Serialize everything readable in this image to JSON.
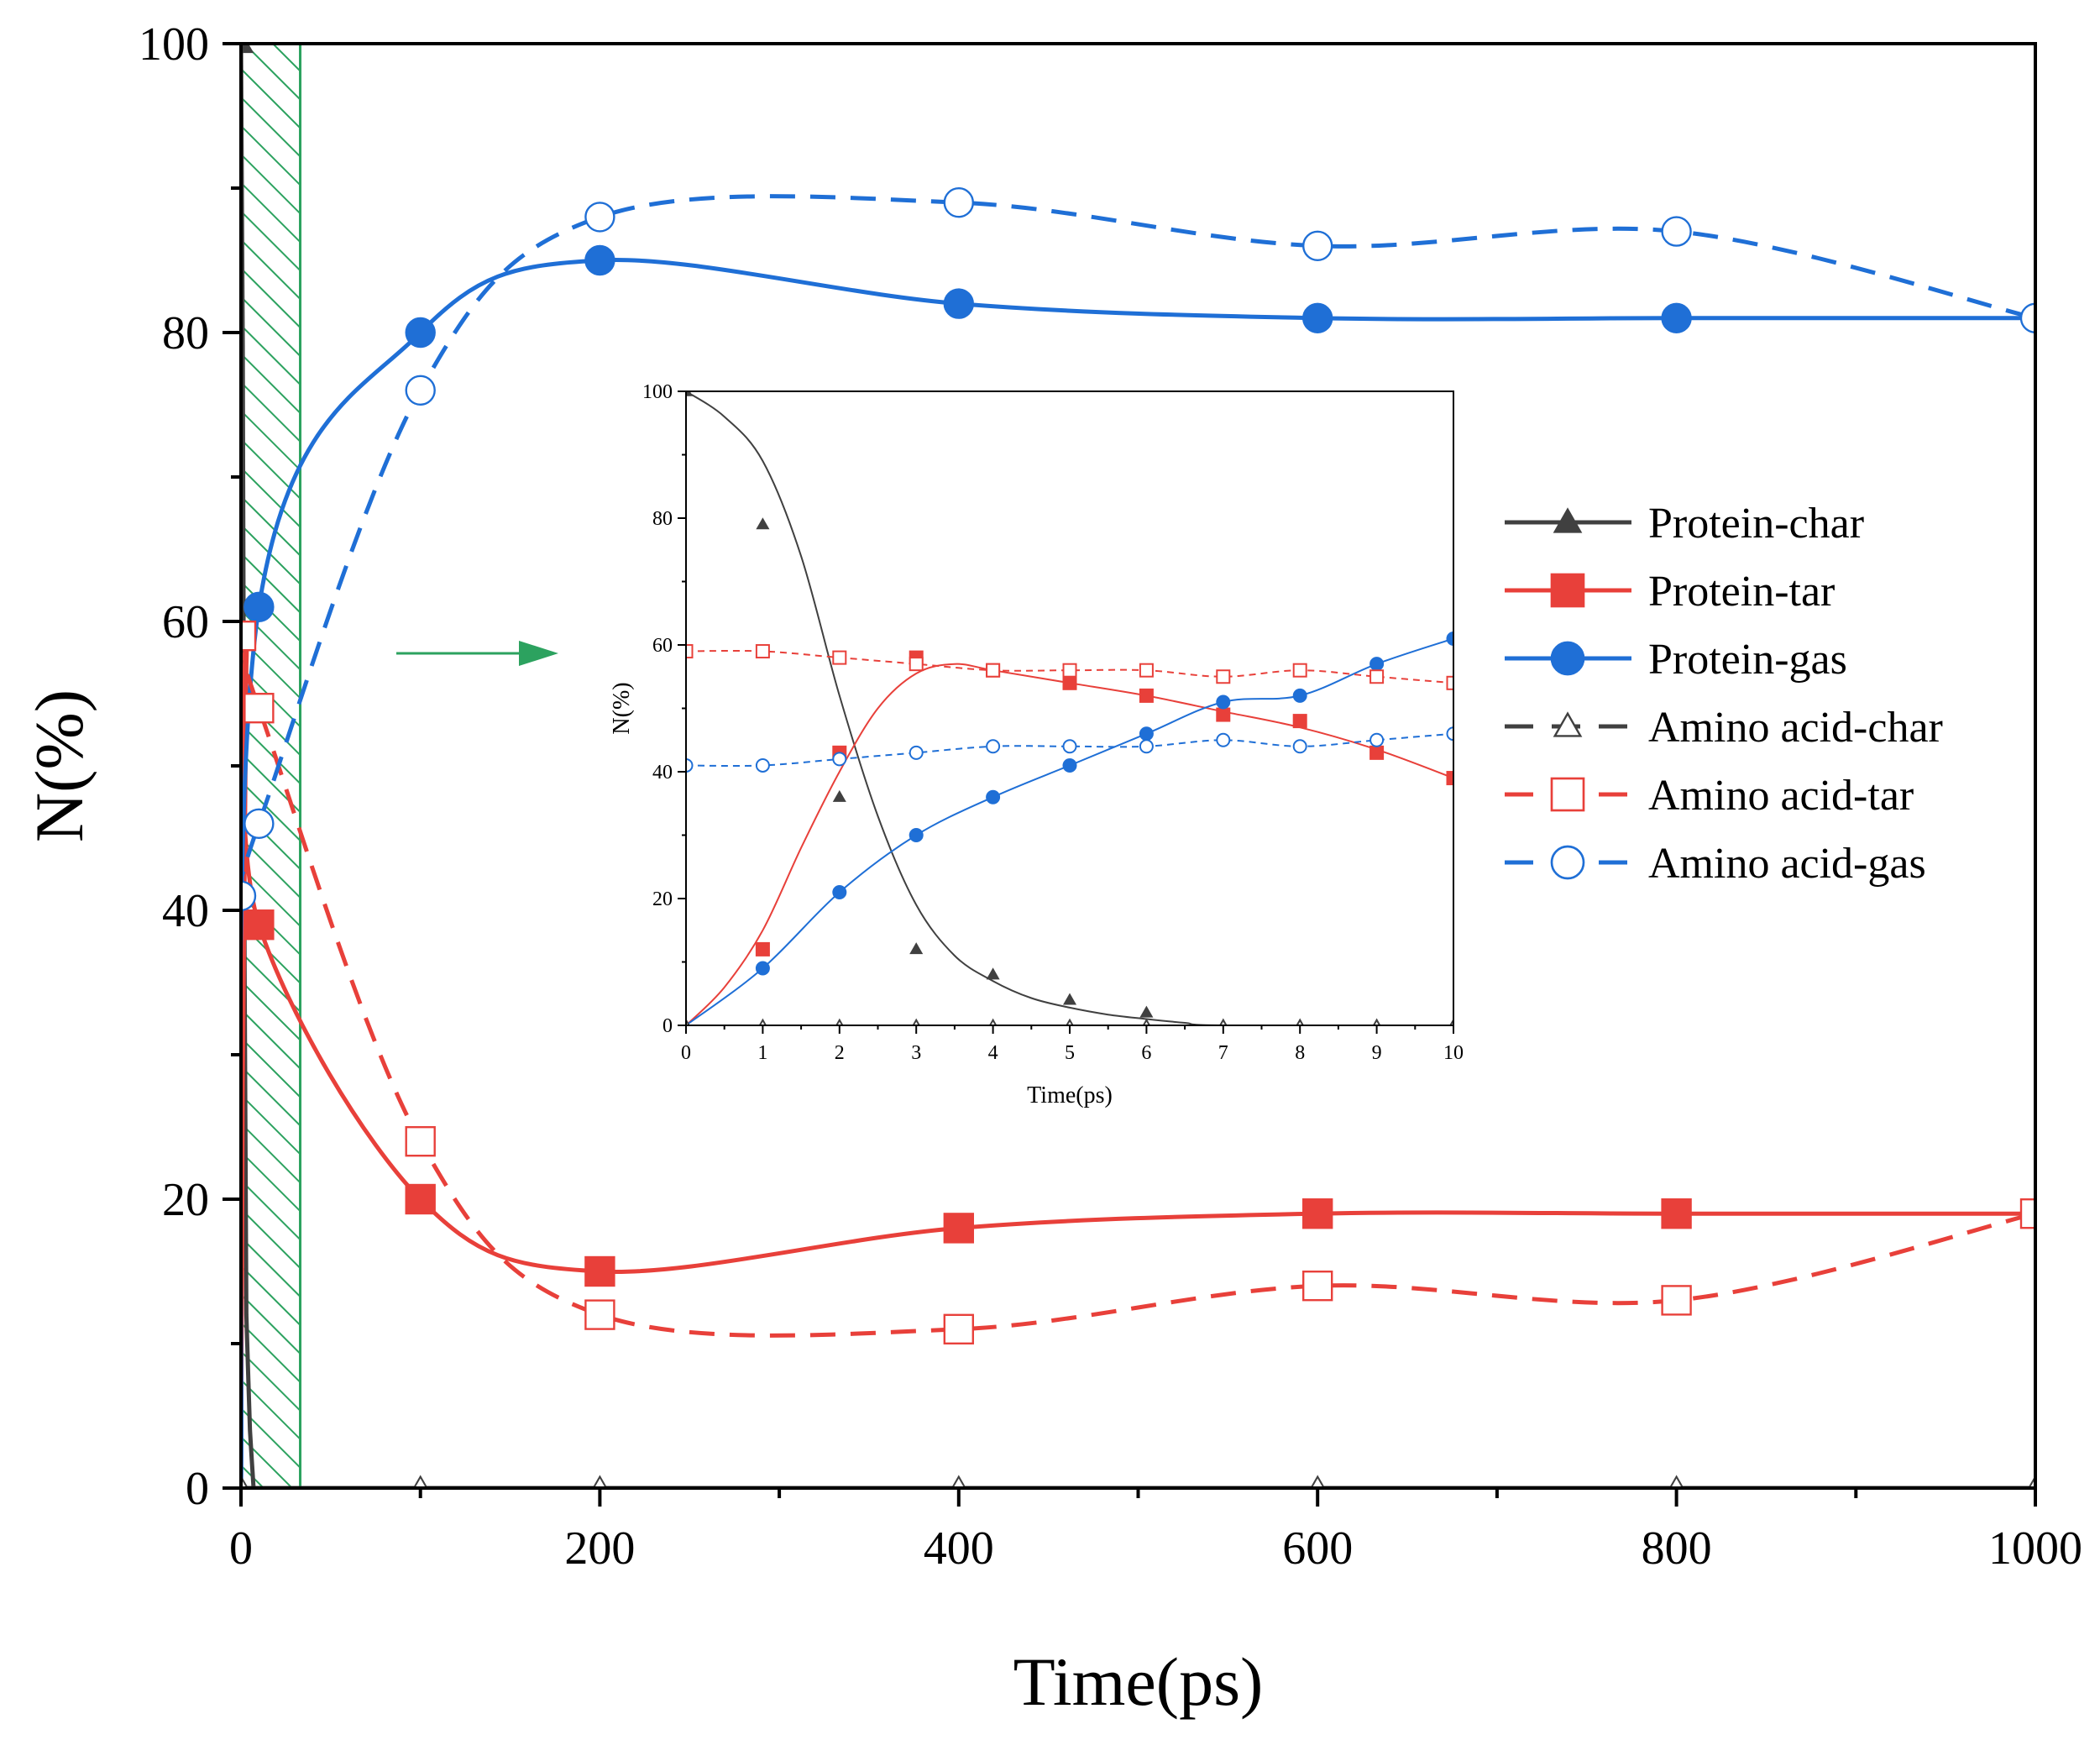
{
  "chart_data": [
    {
      "id": "main",
      "type": "line",
      "xlabel": "Time(ps)",
      "ylabel": "N(%)",
      "xlim": [
        0,
        1000
      ],
      "ylim": [
        0,
        100
      ],
      "xticks": [
        0,
        200,
        400,
        600,
        800,
        1000
      ],
      "yticks": [
        0,
        20,
        40,
        60,
        80,
        100
      ],
      "highlight_region": {
        "x_from": 0,
        "x_to": 33,
        "color": "#2ca25f"
      },
      "series": [
        {
          "name": "Protein-char",
          "color": "#404040",
          "dash": "solid",
          "marker": "triangle-filled",
          "smooth": false,
          "x": [
            0,
            1,
            2,
            3,
            4,
            5,
            6,
            7,
            10,
            20,
            30,
            50,
            100,
            200,
            400,
            600,
            800,
            1000
          ],
          "y": [
            100,
            79,
            36,
            12,
            8,
            4,
            2,
            0,
            0,
            0,
            0,
            0,
            0,
            0,
            0,
            0,
            0,
            0
          ],
          "marker_x": [
            0
          ],
          "marker_y": [
            100
          ]
        },
        {
          "name": "Protein-tar",
          "color": "#e8403a",
          "dash": "solid",
          "marker": "square-filled",
          "smooth": true,
          "x": [
            0,
            3,
            10,
            100,
            200,
            400,
            600,
            800,
            1000
          ],
          "y": [
            0,
            57,
            39,
            20,
            15,
            18,
            19,
            19,
            19
          ],
          "marker_x": [
            10,
            100,
            200,
            400,
            600,
            800
          ],
          "marker_y": [
            39,
            20,
            15,
            18,
            19,
            19
          ]
        },
        {
          "name": "Protein-gas",
          "color": "#1f6fd6",
          "dash": "solid",
          "marker": "circle-filled",
          "smooth": true,
          "x": [
            0,
            10,
            100,
            200,
            400,
            600,
            800,
            1000
          ],
          "y": [
            0,
            61,
            80,
            85,
            82,
            81,
            81,
            81
          ],
          "marker_x": [
            10,
            100,
            200,
            400,
            600,
            800
          ],
          "marker_y": [
            61,
            80,
            85,
            82,
            81,
            81
          ]
        },
        {
          "name": "Amino acid-char",
          "color": "#404040",
          "dash": "dashed",
          "marker": "triangle-open",
          "smooth": false,
          "x": [
            0,
            100,
            200,
            400,
            600,
            800,
            1000
          ],
          "y": [
            0,
            0,
            0,
            0,
            0,
            0,
            0
          ],
          "marker_x": [
            0,
            100,
            200,
            400,
            600,
            800,
            1000
          ],
          "marker_y": [
            0,
            0,
            0,
            0,
            0,
            0,
            0
          ]
        },
        {
          "name": "Amino acid-tar",
          "color": "#e8403a",
          "dash": "dashed",
          "marker": "square-open",
          "smooth": true,
          "x": [
            0,
            10,
            100,
            200,
            400,
            600,
            800,
            1000
          ],
          "y": [
            59,
            54,
            24,
            12,
            11,
            14,
            13,
            19
          ],
          "marker_x": [
            0,
            10,
            100,
            200,
            400,
            600,
            800,
            1000
          ],
          "marker_y": [
            59,
            54,
            24,
            12,
            11,
            14,
            13,
            19
          ]
        },
        {
          "name": "Amino acid-gas",
          "color": "#1f6fd6",
          "dash": "dashed",
          "marker": "circle-open",
          "smooth": true,
          "x": [
            0,
            10,
            100,
            200,
            400,
            600,
            800,
            1000
          ],
          "y": [
            41,
            46,
            76,
            88,
            89,
            86,
            87,
            81
          ],
          "marker_x": [
            0,
            10,
            100,
            200,
            400,
            600,
            800,
            1000
          ],
          "marker_y": [
            41,
            46,
            76,
            88,
            89,
            86,
            87,
            81
          ]
        }
      ]
    },
    {
      "id": "inset",
      "type": "line",
      "xlabel": "Time(ps)",
      "ylabel": "N(%)",
      "xlim": [
        0,
        10
      ],
      "ylim": [
        0,
        100
      ],
      "xticks": [
        0,
        1,
        2,
        3,
        4,
        5,
        6,
        7,
        8,
        9,
        10
      ],
      "yticks": [
        0,
        20,
        40,
        60,
        80,
        100
      ],
      "series": [
        {
          "name": "Protein-char",
          "color": "#404040",
          "marker": "triangle-filled",
          "x": [
            0,
            1,
            2,
            3,
            4,
            5,
            6,
            7,
            8,
            9,
            10
          ],
          "y": [
            100,
            79,
            36,
            12,
            8,
            4,
            2,
            0,
            0,
            0,
            0
          ],
          "fit": [
            [
              0,
              100
            ],
            [
              0.5,
              96
            ],
            [
              1,
              89
            ],
            [
              1.5,
              74
            ],
            [
              2,
              52
            ],
            [
              2.5,
              33
            ],
            [
              3,
              19
            ],
            [
              3.5,
              11
            ],
            [
              4,
              7
            ],
            [
              4.5,
              4.3
            ],
            [
              5,
              2.8
            ],
            [
              5.5,
              1.7
            ],
            [
              6,
              1
            ],
            [
              6.5,
              0.4
            ],
            [
              7,
              0
            ],
            [
              10,
              0
            ]
          ]
        },
        {
          "name": "Protein-tar",
          "color": "#e8403a",
          "marker": "square-filled",
          "x": [
            1,
            2,
            3,
            4,
            5,
            6,
            7,
            8,
            9,
            10
          ],
          "y": [
            12,
            43,
            58,
            56,
            54,
            52,
            49,
            48,
            43,
            39
          ],
          "fit": [
            [
              0,
              0
            ],
            [
              0.5,
              6
            ],
            [
              1,
              15
            ],
            [
              1.5,
              28
            ],
            [
              2,
              40
            ],
            [
              2.5,
              50
            ],
            [
              3,
              55.5
            ],
            [
              3.5,
              57
            ],
            [
              4,
              56
            ],
            [
              5,
              54
            ],
            [
              6,
              52
            ],
            [
              7,
              49.5
            ],
            [
              8,
              47
            ],
            [
              9,
              43.5
            ],
            [
              10,
              39
            ]
          ]
        },
        {
          "name": "Protein-gas",
          "color": "#1f6fd6",
          "marker": "circle-filled",
          "x": [
            1,
            2,
            3,
            4,
            5,
            6,
            7,
            8,
            9,
            10
          ],
          "y": [
            9,
            21,
            30,
            36,
            41,
            46,
            51,
            52,
            57,
            61
          ],
          "fit": [
            [
              0,
              0
            ],
            [
              1,
              9
            ],
            [
              2,
              21
            ],
            [
              3,
              30
            ],
            [
              4,
              36
            ],
            [
              5,
              41
            ],
            [
              6,
              46
            ],
            [
              7,
              51
            ],
            [
              8,
              52
            ],
            [
              9,
              57
            ],
            [
              10,
              61
            ]
          ]
        },
        {
          "name": "Amino acid-char",
          "color": "#404040",
          "marker": "triangle-open",
          "x": [
            0,
            1,
            2,
            3,
            4,
            5,
            6,
            7,
            8,
            9,
            10
          ],
          "y": [
            0,
            0,
            0,
            0,
            0,
            0,
            0,
            0,
            0,
            0,
            0
          ],
          "fit": [
            [
              0,
              0
            ],
            [
              10,
              0
            ]
          ]
        },
        {
          "name": "Amino acid-tar",
          "color": "#e8403a",
          "marker": "square-open",
          "x": [
            0,
            1,
            2,
            3,
            4,
            5,
            6,
            7,
            8,
            9,
            10
          ],
          "y": [
            59,
            59,
            58,
            57,
            56,
            56,
            56,
            55,
            56,
            55,
            54
          ],
          "fit": [
            [
              0,
              59
            ],
            [
              1,
              59
            ],
            [
              2,
              58
            ],
            [
              3,
              57
            ],
            [
              4,
              56
            ],
            [
              5,
              56
            ],
            [
              6,
              56
            ],
            [
              7,
              55
            ],
            [
              8,
              56
            ],
            [
              9,
              55
            ],
            [
              10,
              54
            ]
          ]
        },
        {
          "name": "Amino acid-gas",
          "color": "#1f6fd6",
          "marker": "circle-open",
          "x": [
            0,
            1,
            2,
            3,
            4,
            5,
            6,
            7,
            8,
            9,
            10
          ],
          "y": [
            41,
            41,
            42,
            43,
            44,
            44,
            44,
            45,
            44,
            45,
            46
          ],
          "fit": [
            [
              0,
              41
            ],
            [
              1,
              41
            ],
            [
              2,
              42
            ],
            [
              3,
              43
            ],
            [
              4,
              44
            ],
            [
              5,
              44
            ],
            [
              6,
              44
            ],
            [
              7,
              45
            ],
            [
              8,
              44
            ],
            [
              9,
              45
            ],
            [
              10,
              46
            ]
          ]
        }
      ]
    }
  ],
  "legend": {
    "position": "right-middle",
    "entries": [
      "Protein-char",
      "Protein-tar",
      "Protein-gas",
      "Amino acid-char",
      "Amino acid-tar",
      "Amino acid-gas"
    ]
  },
  "arrow": {
    "color": "#2ca25f"
  }
}
